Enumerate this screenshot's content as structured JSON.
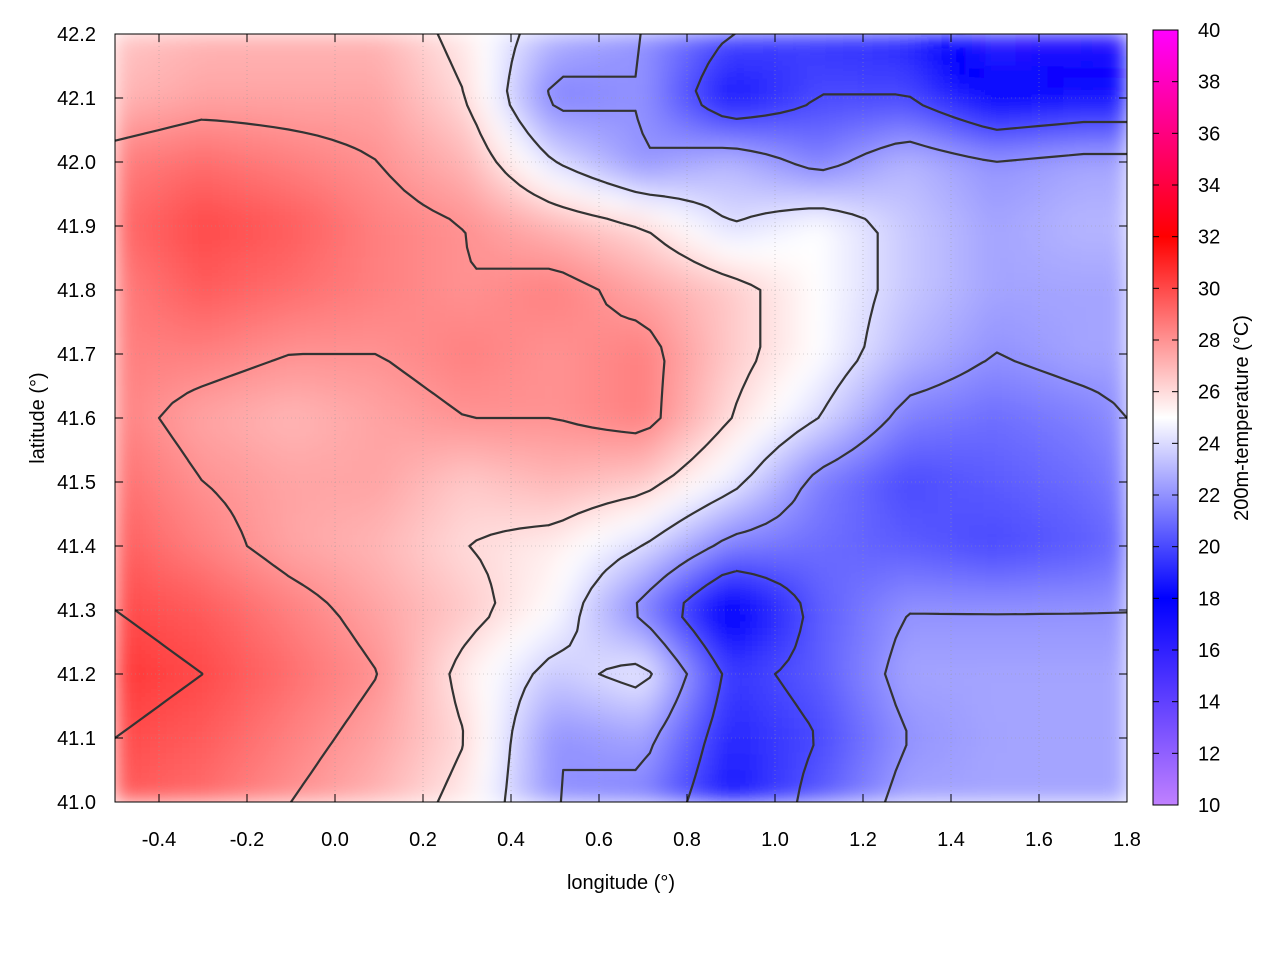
{
  "chart_data": {
    "type": "heatmap",
    "title": "",
    "xlabel": "longitude (°)",
    "ylabel": "latitude (°)",
    "colorbar_label": "200m-temperature (°C)",
    "xlim": [
      -0.5,
      1.8
    ],
    "ylim": [
      41.0,
      42.2
    ],
    "clim": [
      10,
      40
    ],
    "x_ticks": [
      -0.4,
      -0.2,
      0.0,
      0.2,
      0.4,
      0.6,
      0.8,
      1.0,
      1.2,
      1.4,
      1.6,
      1.8
    ],
    "x_tick_labels": [
      "-0.4",
      "-0.2",
      "0.0",
      "0.2",
      "0.4",
      "0.6",
      "0.8",
      "1.0",
      "1.2",
      "1.4",
      "1.6",
      "1.8"
    ],
    "y_ticks": [
      41.0,
      41.1,
      41.2,
      41.3,
      41.4,
      41.5,
      41.6,
      41.7,
      41.8,
      41.9,
      42.0,
      42.1,
      42.2
    ],
    "y_tick_labels": [
      "41.0",
      "41.1",
      "41.2",
      "41.3",
      "41.4",
      "41.5",
      "41.6",
      "41.7",
      "41.8",
      "41.9",
      "42.0",
      "42.1",
      "42.2"
    ],
    "colorbar_ticks": [
      10,
      12,
      14,
      16,
      18,
      20,
      22,
      24,
      26,
      28,
      30,
      32,
      34,
      36,
      38,
      40
    ],
    "colorbar_tick_labels": [
      "10",
      "12",
      "14",
      "16",
      "18",
      "20",
      "22",
      "24",
      "26",
      "28",
      "30",
      "32",
      "34",
      "36",
      "38",
      "40"
    ],
    "colormap": [
      {
        "value": 10,
        "color": "#c080ff"
      },
      {
        "value": 18,
        "color": "#0000ff"
      },
      {
        "value": 25,
        "color": "#ffffff"
      },
      {
        "value": 32,
        "color": "#ff0000"
      },
      {
        "value": 40,
        "color": "#ff00ff"
      }
    ],
    "grid": true,
    "contours": true,
    "grid_lon": [
      -0.5,
      -0.3,
      -0.1,
      0.1,
      0.3,
      0.5,
      0.7,
      0.9,
      1.1,
      1.3,
      1.5,
      1.7,
      1.8
    ],
    "grid_lat": [
      41.0,
      41.1,
      41.2,
      41.3,
      41.4,
      41.5,
      41.6,
      41.7,
      41.8,
      41.9,
      42.0,
      42.1,
      42.2
    ],
    "temperature": [
      [
        29.5,
        29.0,
        28.0,
        27.0,
        25.5,
        22.0,
        21.5,
        18.5,
        20.5,
        22.5,
        22.5,
        22.5,
        22.5
      ],
      [
        30.0,
        29.5,
        28.5,
        27.5,
        26.0,
        22.0,
        22.5,
        19.0,
        20.0,
        22.0,
        22.5,
        22.5,
        22.5
      ],
      [
        30.5,
        30.0,
        29.0,
        28.0,
        25.5,
        23.5,
        24.5,
        19.5,
        20.5,
        22.5,
        22.5,
        22.5,
        22.5
      ],
      [
        30.0,
        29.5,
        28.5,
        27.5,
        26.5,
        25.0,
        21.5,
        17.5,
        20.5,
        22.0,
        22.0,
        22.0,
        22.0
      ],
      [
        29.5,
        28.5,
        27.5,
        27.0,
        26.0,
        25.5,
        24.0,
        21.5,
        21.0,
        20.5,
        20.0,
        20.5,
        21.0
      ],
      [
        29.0,
        28.0,
        27.5,
        27.5,
        26.5,
        27.0,
        26.5,
        24.5,
        21.5,
        20.0,
        20.5,
        21.0,
        21.5
      ],
      [
        28.5,
        27.5,
        27.0,
        27.5,
        28.0,
        28.0,
        28.5,
        26.0,
        24.0,
        21.5,
        21.0,
        21.5,
        22.0
      ],
      [
        28.5,
        28.5,
        28.0,
        28.0,
        28.5,
        28.0,
        28.5,
        26.5,
        25.0,
        23.0,
        22.0,
        22.5,
        22.5
      ],
      [
        28.5,
        29.5,
        29.0,
        28.5,
        28.0,
        28.5,
        27.5,
        26.5,
        25.0,
        23.5,
        22.5,
        22.5,
        22.5
      ],
      [
        29.0,
        30.0,
        29.5,
        28.5,
        28.0,
        27.0,
        26.0,
        24.0,
        25.0,
        23.5,
        22.5,
        23.0,
        23.0
      ],
      [
        28.5,
        29.0,
        28.5,
        28.0,
        27.0,
        24.0,
        22.0,
        23.0,
        21.5,
        23.0,
        22.0,
        22.5,
        22.5
      ],
      [
        27.0,
        27.5,
        27.5,
        27.5,
        26.0,
        21.5,
        22.0,
        18.5,
        20.0,
        20.0,
        18.0,
        18.5,
        18.5
      ],
      [
        26.5,
        27.0,
        27.0,
        27.0,
        25.5,
        23.0,
        22.0,
        20.0,
        19.5,
        19.0,
        16.0,
        16.5,
        16.0
      ]
    ]
  }
}
